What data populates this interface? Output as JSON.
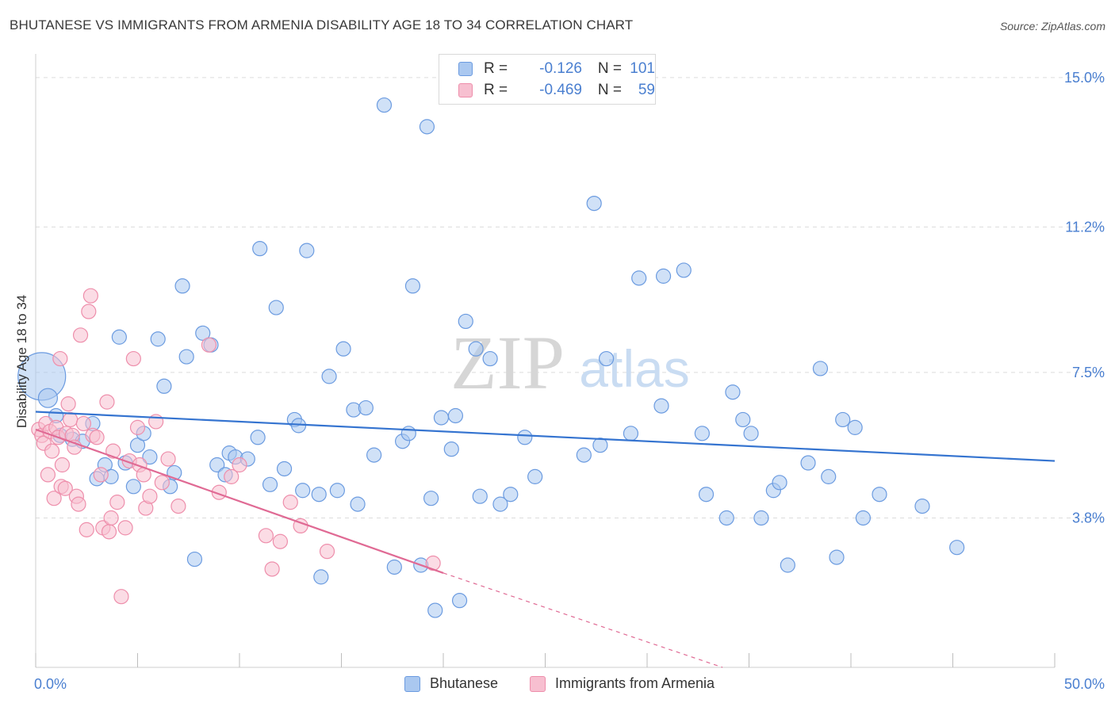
{
  "title": "BHUTANESE VS IMMIGRANTS FROM ARMENIA DISABILITY AGE 18 TO 34 CORRELATION CHART",
  "source": "Source: ZipAtlas.com",
  "watermark": {
    "zip": "ZIP",
    "atlas": "atlas"
  },
  "legend": {
    "rows": [
      {
        "r_label": "R =",
        "r_value": "-0.126",
        "n_label": "N =",
        "n_value": "101"
      },
      {
        "r_label": "R =",
        "r_value": "-0.469",
        "n_label": "N =",
        "n_value": "59"
      }
    ]
  },
  "colors": {
    "blue_fill": "#aac8f0",
    "blue_stroke": "#6b9be0",
    "blue_line": "#3574d0",
    "pink_fill": "#f7bfd0",
    "pink_stroke": "#ee8eab",
    "pink_line": "#e06a94",
    "value_text": "#4a7fd0",
    "grid": "#dcdcdc"
  },
  "chart_data": {
    "type": "scatter",
    "title": "BHUTANESE VS IMMIGRANTS FROM ARMENIA DISABILITY AGE 18 TO 34 CORRELATION CHART",
    "xlabel": "",
    "ylabel": "Disability Age 18 to 34",
    "xlim": [
      0,
      50
    ],
    "ylim": [
      0,
      15.4
    ],
    "x_tick_labels": [
      "0.0%",
      "50.0%"
    ],
    "y_ticks": [
      3.8,
      7.5,
      11.2,
      15.0
    ],
    "y_tick_labels": [
      "3.8%",
      "7.5%",
      "11.2%",
      "15.0%"
    ],
    "grid": true,
    "legend_position": "top-center",
    "series": [
      {
        "name": "Bhutanese",
        "color": "#aac8f0",
        "r": -0.126,
        "n": 101,
        "trend": {
          "x": [
            0.0,
            50.0
          ],
          "y": [
            6.5,
            5.25
          ]
        },
        "points": [
          [
            0.3,
            7.4,
            30
          ],
          [
            0.6,
            6.85,
            12
          ],
          [
            1.0,
            6.4,
            9
          ],
          [
            1.2,
            5.9,
            9
          ],
          [
            1.8,
            5.8,
            9
          ],
          [
            2.3,
            5.75,
            9
          ],
          [
            2.8,
            6.2,
            9
          ],
          [
            3.0,
            4.8,
            9
          ],
          [
            3.4,
            5.15,
            9
          ],
          [
            3.7,
            4.85,
            9
          ],
          [
            4.1,
            8.4,
            9
          ],
          [
            4.4,
            5.2,
            9
          ],
          [
            4.8,
            4.6,
            9
          ],
          [
            5.0,
            5.65,
            9
          ],
          [
            5.3,
            5.95,
            9
          ],
          [
            5.6,
            5.35,
            9
          ],
          [
            6.0,
            8.35,
            9
          ],
          [
            6.3,
            7.15,
            9
          ],
          [
            6.6,
            4.6,
            9
          ],
          [
            6.8,
            4.95,
            9
          ],
          [
            7.2,
            9.7,
            9
          ],
          [
            7.4,
            7.9,
            9
          ],
          [
            7.8,
            2.75,
            9
          ],
          [
            8.2,
            8.5,
            9
          ],
          [
            8.6,
            8.2,
            9
          ],
          [
            8.9,
            5.15,
            9
          ],
          [
            9.3,
            4.9,
            9
          ],
          [
            9.5,
            5.45,
            9
          ],
          [
            9.8,
            5.35,
            9
          ],
          [
            10.4,
            5.3,
            9
          ],
          [
            10.9,
            5.85,
            9
          ],
          [
            11.0,
            10.65,
            9
          ],
          [
            11.5,
            4.65,
            9
          ],
          [
            11.8,
            9.15,
            9
          ],
          [
            12.2,
            5.05,
            9
          ],
          [
            12.7,
            6.3,
            9
          ],
          [
            12.9,
            6.15,
            9
          ],
          [
            13.1,
            4.5,
            9
          ],
          [
            13.3,
            10.6,
            9
          ],
          [
            13.9,
            4.4,
            9
          ],
          [
            14.0,
            2.3,
            9
          ],
          [
            14.4,
            7.4,
            9
          ],
          [
            14.8,
            4.5,
            9
          ],
          [
            15.1,
            8.1,
            9
          ],
          [
            15.6,
            6.55,
            9
          ],
          [
            15.8,
            4.15,
            9
          ],
          [
            16.2,
            6.6,
            9
          ],
          [
            16.6,
            5.4,
            9
          ],
          [
            17.1,
            14.3,
            9
          ],
          [
            17.6,
            2.55,
            9
          ],
          [
            18.0,
            5.75,
            9
          ],
          [
            18.3,
            5.95,
            9
          ],
          [
            18.5,
            9.7,
            9
          ],
          [
            18.9,
            2.6,
            9
          ],
          [
            19.2,
            13.75,
            9
          ],
          [
            19.4,
            4.3,
            9
          ],
          [
            19.6,
            1.45,
            9
          ],
          [
            19.9,
            6.35,
            9
          ],
          [
            20.4,
            5.55,
            9
          ],
          [
            20.6,
            6.4,
            9
          ],
          [
            20.8,
            1.7,
            9
          ],
          [
            21.1,
            8.8,
            9
          ],
          [
            21.6,
            8.1,
            9
          ],
          [
            21.8,
            4.35,
            9
          ],
          [
            22.3,
            7.85,
            9
          ],
          [
            22.8,
            4.15,
            9
          ],
          [
            23.3,
            4.4,
            9
          ],
          [
            24.0,
            5.85,
            9
          ],
          [
            24.5,
            4.85,
            9
          ],
          [
            26.9,
            5.4,
            9
          ],
          [
            27.4,
            11.8,
            9
          ],
          [
            27.7,
            5.65,
            9
          ],
          [
            28.0,
            7.85,
            9
          ],
          [
            29.2,
            5.95,
            9
          ],
          [
            29.6,
            9.9,
            9
          ],
          [
            30.7,
            6.65,
            9
          ],
          [
            30.8,
            9.95,
            9
          ],
          [
            31.8,
            10.1,
            9
          ],
          [
            32.7,
            5.95,
            9
          ],
          [
            32.9,
            4.4,
            9
          ],
          [
            33.9,
            3.8,
            9
          ],
          [
            34.2,
            7.0,
            9
          ],
          [
            34.7,
            6.3,
            9
          ],
          [
            35.1,
            5.95,
            9
          ],
          [
            35.6,
            3.8,
            9
          ],
          [
            36.2,
            4.5,
            9
          ],
          [
            36.5,
            4.7,
            9
          ],
          [
            36.9,
            2.6,
            9
          ],
          [
            37.9,
            5.2,
            9
          ],
          [
            38.5,
            7.6,
            9
          ],
          [
            38.9,
            4.85,
            9
          ],
          [
            39.3,
            2.8,
            9
          ],
          [
            39.6,
            6.3,
            9
          ],
          [
            40.2,
            6.1,
            9
          ],
          [
            40.6,
            3.8,
            9
          ],
          [
            41.4,
            4.4,
            9
          ],
          [
            43.5,
            4.1,
            9
          ],
          [
            45.2,
            3.05,
            9
          ]
        ]
      },
      {
        "name": "Immigrants from Armenia",
        "color": "#f7bfd0",
        "r": -0.469,
        "n": 59,
        "trend": {
          "x": [
            0.0,
            20.0
          ],
          "y": [
            6.05,
            2.4
          ]
        },
        "trend_dashed": {
          "x": [
            20.0,
            33.7
          ],
          "y": [
            2.4,
            0.0
          ]
        },
        "points": [
          [
            0.15,
            6.05,
            9
          ],
          [
            0.3,
            5.9,
            9
          ],
          [
            0.4,
            5.7,
            9
          ],
          [
            0.5,
            6.2,
            9
          ],
          [
            0.6,
            4.9,
            9
          ],
          [
            0.7,
            6.0,
            9
          ],
          [
            0.8,
            5.5,
            9
          ],
          [
            0.9,
            4.3,
            9
          ],
          [
            1.0,
            6.1,
            9
          ],
          [
            1.1,
            5.85,
            9
          ],
          [
            1.2,
            7.85,
            9
          ],
          [
            1.25,
            4.6,
            9
          ],
          [
            1.3,
            5.15,
            9
          ],
          [
            1.45,
            4.55,
            9
          ],
          [
            1.5,
            5.95,
            9
          ],
          [
            1.6,
            6.7,
            9
          ],
          [
            1.7,
            6.3,
            9
          ],
          [
            1.8,
            5.9,
            9
          ],
          [
            1.9,
            5.6,
            9
          ],
          [
            2.0,
            4.35,
            9
          ],
          [
            2.1,
            4.15,
            9
          ],
          [
            2.2,
            8.45,
            9
          ],
          [
            2.35,
            6.2,
            9
          ],
          [
            2.5,
            3.5,
            9
          ],
          [
            2.6,
            9.05,
            9
          ],
          [
            2.7,
            9.45,
            9
          ],
          [
            2.8,
            5.9,
            9
          ],
          [
            3.0,
            5.85,
            9
          ],
          [
            3.2,
            4.9,
            9
          ],
          [
            3.3,
            3.55,
            9
          ],
          [
            3.5,
            6.75,
            9
          ],
          [
            3.6,
            3.45,
            9
          ],
          [
            3.7,
            3.8,
            9
          ],
          [
            3.8,
            5.5,
            9
          ],
          [
            4.0,
            4.2,
            9
          ],
          [
            4.2,
            1.8,
            9
          ],
          [
            4.4,
            3.55,
            9
          ],
          [
            4.6,
            5.25,
            9
          ],
          [
            4.8,
            7.85,
            9
          ],
          [
            5.0,
            6.1,
            9
          ],
          [
            5.1,
            5.15,
            9
          ],
          [
            5.3,
            4.9,
            9
          ],
          [
            5.4,
            4.05,
            9
          ],
          [
            5.6,
            4.35,
            9
          ],
          [
            5.9,
            6.25,
            9
          ],
          [
            6.2,
            4.7,
            9
          ],
          [
            6.5,
            5.3,
            9
          ],
          [
            7.0,
            4.1,
            9
          ],
          [
            8.5,
            8.2,
            9
          ],
          [
            9.0,
            4.45,
            9
          ],
          [
            9.6,
            4.85,
            9
          ],
          [
            10.0,
            5.15,
            9
          ],
          [
            11.3,
            3.35,
            9
          ],
          [
            11.6,
            2.5,
            9
          ],
          [
            12.0,
            3.2,
            9
          ],
          [
            12.5,
            4.2,
            9
          ],
          [
            13.0,
            3.6,
            9
          ],
          [
            14.3,
            2.95,
            9
          ],
          [
            19.5,
            2.65,
            9
          ]
        ]
      }
    ]
  }
}
